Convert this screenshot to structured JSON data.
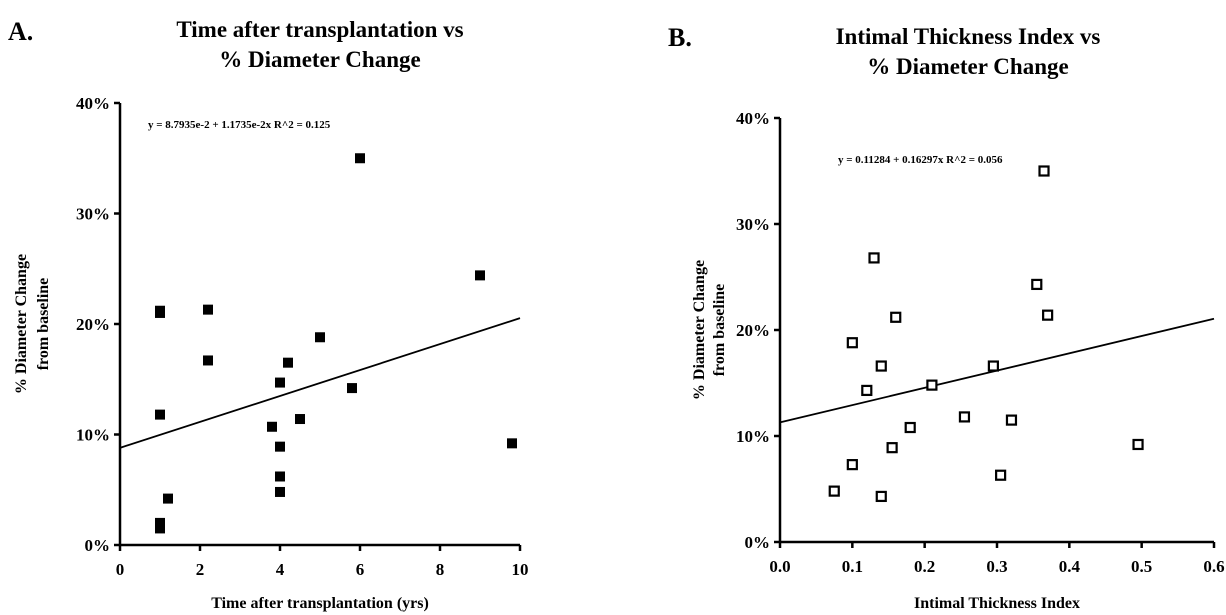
{
  "chart_data": [
    {
      "type": "scatter",
      "panel_label": "A.",
      "title": "Time after transplantation vs % Diameter Change",
      "title_lines": [
        "Time after transplantation vs",
        "% Diameter Change"
      ],
      "xlabel": "Time after transplantation (yrs)",
      "ylabel_lines": [
        "% Diameter Change",
        "from baseline"
      ],
      "equation": "y = 8.7935e-2 + 1.1735e-2x   R^2 = 0.125",
      "xlim": [
        0,
        10
      ],
      "ylim": [
        0,
        40
      ],
      "x_ticks": [
        0,
        2,
        4,
        6,
        8,
        10
      ],
      "x_tick_labels": [
        "0",
        "2",
        "4",
        "6",
        "8",
        "10"
      ],
      "y_ticks": [
        0,
        10,
        20,
        30,
        40
      ],
      "y_tick_labels": [
        "0%",
        "10%",
        "20%",
        "30%",
        "40%"
      ],
      "marker": "filled-square",
      "trendline": {
        "intercept": 8.7935,
        "slope": 1.1735
      },
      "points": [
        {
          "x": 1.0,
          "y": 21.2
        },
        {
          "x": 1.0,
          "y": 21.0
        },
        {
          "x": 1.0,
          "y": 11.8
        },
        {
          "x": 1.0,
          "y": 2.0
        },
        {
          "x": 1.0,
          "y": 1.5
        },
        {
          "x": 1.2,
          "y": 4.2
        },
        {
          "x": 2.2,
          "y": 21.3
        },
        {
          "x": 2.2,
          "y": 16.7
        },
        {
          "x": 3.8,
          "y": 10.7
        },
        {
          "x": 4.0,
          "y": 14.7
        },
        {
          "x": 4.0,
          "y": 8.9
        },
        {
          "x": 4.0,
          "y": 6.2
        },
        {
          "x": 4.0,
          "y": 4.8
        },
        {
          "x": 4.2,
          "y": 16.5
        },
        {
          "x": 4.5,
          "y": 11.4
        },
        {
          "x": 5.0,
          "y": 18.8
        },
        {
          "x": 5.8,
          "y": 14.2
        },
        {
          "x": 6.0,
          "y": 35.0
        },
        {
          "x": 9.0,
          "y": 24.4
        },
        {
          "x": 9.8,
          "y": 9.2
        }
      ]
    },
    {
      "type": "scatter",
      "panel_label": "B.",
      "title": "Intimal Thickness Index vs % Diameter Change",
      "title_lines": [
        "Intimal Thickness Index vs",
        "% Diameter Change"
      ],
      "xlabel": "Intimal Thickness Index",
      "ylabel_lines": [
        "% Diameter Change",
        "from baseline"
      ],
      "equation": "y = 0.11284 + 0.16297x   R^2 = 0.056",
      "xlim": [
        0,
        0.6
      ],
      "ylim": [
        0,
        40
      ],
      "x_ticks": [
        0,
        0.1,
        0.2,
        0.3,
        0.4,
        0.5,
        0.6
      ],
      "x_tick_labels": [
        "0.0",
        "0.1",
        "0.2",
        "0.3",
        "0.4",
        "0.5",
        "0.6"
      ],
      "y_ticks": [
        0,
        10,
        20,
        30,
        40
      ],
      "y_tick_labels": [
        "0%",
        "10%",
        "20%",
        "30%",
        "40%"
      ],
      "marker": "open-square",
      "trendline": {
        "intercept": 11.284,
        "slope": 16.297
      },
      "points": [
        {
          "x": 0.075,
          "y": 4.8
        },
        {
          "x": 0.1,
          "y": 7.3
        },
        {
          "x": 0.1,
          "y": 18.8
        },
        {
          "x": 0.12,
          "y": 14.3
        },
        {
          "x": 0.13,
          "y": 26.8
        },
        {
          "x": 0.14,
          "y": 16.6
        },
        {
          "x": 0.14,
          "y": 4.3
        },
        {
          "x": 0.155,
          "y": 8.9
        },
        {
          "x": 0.16,
          "y": 21.2
        },
        {
          "x": 0.18,
          "y": 10.8
        },
        {
          "x": 0.21,
          "y": 14.8
        },
        {
          "x": 0.255,
          "y": 11.8
        },
        {
          "x": 0.295,
          "y": 16.6
        },
        {
          "x": 0.305,
          "y": 6.3
        },
        {
          "x": 0.32,
          "y": 11.5
        },
        {
          "x": 0.355,
          "y": 24.3
        },
        {
          "x": 0.365,
          "y": 35.0
        },
        {
          "x": 0.37,
          "y": 21.4
        },
        {
          "x": 0.495,
          "y": 9.2
        }
      ]
    }
  ]
}
